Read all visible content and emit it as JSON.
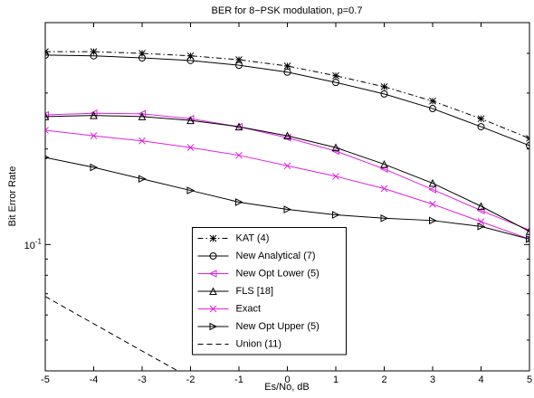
{
  "chart_data": {
    "type": "line",
    "title": "BER for 8−PSK modulation, p=0.7",
    "xlabel": "Es/No, dB",
    "ylabel": "Bit Error Rate",
    "x": [
      -5,
      -4,
      -3,
      -2,
      -1,
      0,
      1,
      2,
      3,
      4,
      5
    ],
    "xlim": [
      -5,
      5
    ],
    "xticks": [
      -5,
      -4,
      -3,
      -2,
      -1,
      0,
      1,
      2,
      3,
      4,
      5
    ],
    "ylim": [
      0.04,
      0.5
    ],
    "yscale": "log",
    "yticks": [
      {
        "value": 0.1,
        "label": "10^-1"
      }
    ],
    "yminorticks": [
      0.05,
      0.06,
      0.07,
      0.08,
      0.09,
      0.2,
      0.3,
      0.4
    ],
    "grid": false,
    "legend_location": "lower center",
    "series": [
      {
        "name": "KAT (4)",
        "color": "#000000",
        "marker": "*",
        "linestyle": "dashdot",
        "values": [
          0.405,
          0.405,
          0.4,
          0.393,
          0.382,
          0.365,
          0.34,
          0.314,
          0.283,
          0.249,
          0.216
        ]
      },
      {
        "name": "New Analytical (7)",
        "color": "#000000",
        "marker": "o",
        "linestyle": "solid",
        "values": [
          0.395,
          0.393,
          0.387,
          0.38,
          0.367,
          0.349,
          0.324,
          0.298,
          0.268,
          0.235,
          0.205
        ]
      },
      {
        "name": "New Opt Lower (5)",
        "color": "#e020e0",
        "marker": "<",
        "linestyle": "solid",
        "values": [
          0.256,
          0.259,
          0.258,
          0.249,
          0.235,
          0.217,
          0.197,
          0.173,
          0.149,
          0.128,
          0.111
        ]
      },
      {
        "name": "FLS [18]",
        "color": "#000000",
        "marker": "^",
        "linestyle": "solid",
        "values": [
          0.253,
          0.255,
          0.253,
          0.246,
          0.235,
          0.22,
          0.202,
          0.179,
          0.156,
          0.132,
          0.11
        ]
      },
      {
        "name": "Exact",
        "color": "#e020e0",
        "marker": "x",
        "linestyle": "solid",
        "values": [
          0.229,
          0.22,
          0.212,
          0.202,
          0.191,
          0.177,
          0.164,
          0.15,
          0.134,
          0.118,
          0.104
        ]
      },
      {
        "name": "New Opt Upper (5)",
        "color": "#000000",
        "marker": ">",
        "linestyle": "solid",
        "values": [
          0.188,
          0.175,
          0.161,
          0.148,
          0.136,
          0.129,
          0.124,
          0.121,
          0.119,
          0.114,
          0.104
        ]
      },
      {
        "name": "Union (11)",
        "color": "#000000",
        "marker": "none",
        "linestyle": "dashed",
        "values": [
          0.0686,
          0.0563,
          0.0462,
          0.038,
          null,
          null,
          null,
          null,
          null,
          null,
          null
        ]
      }
    ]
  }
}
